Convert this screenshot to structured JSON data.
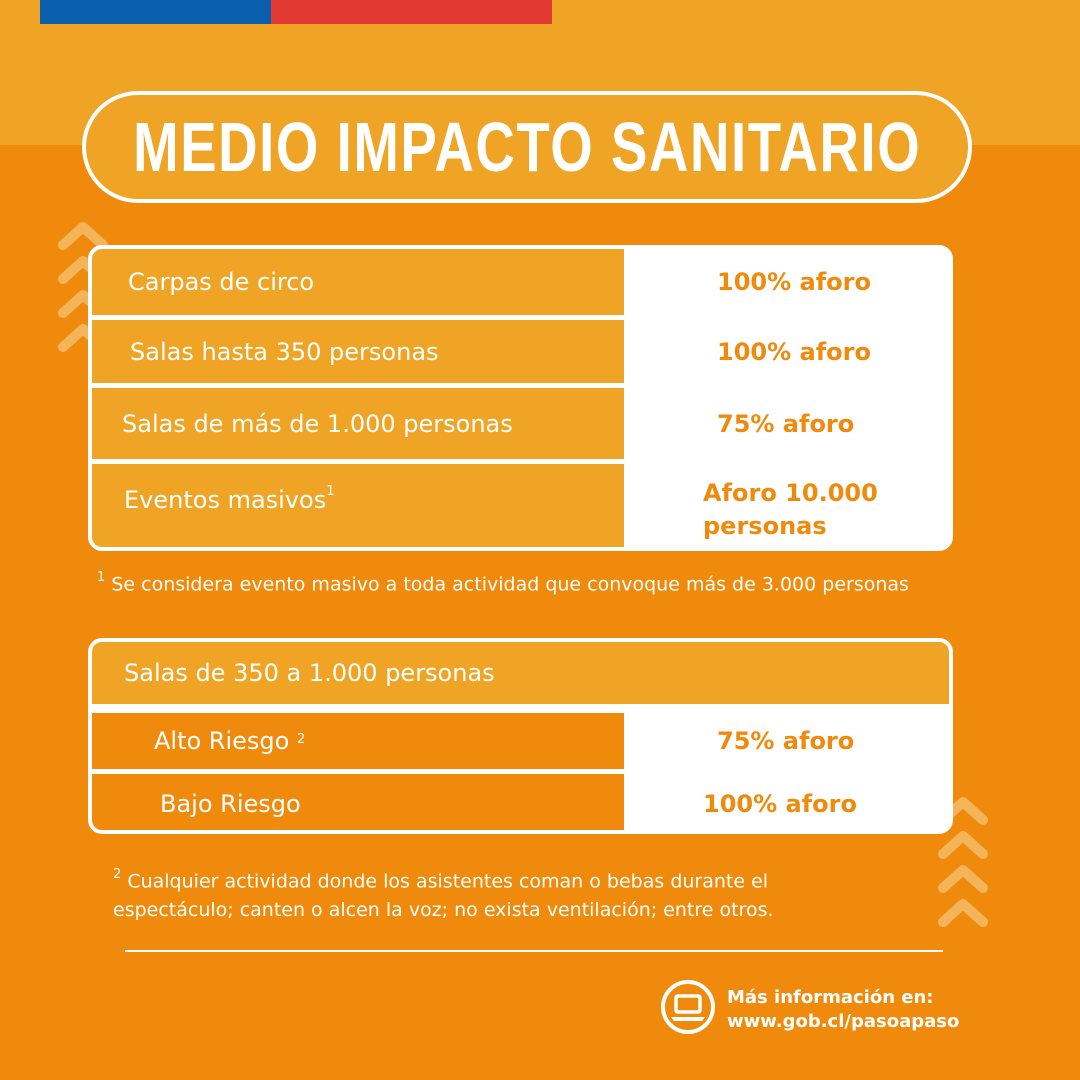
{
  "header": {
    "title": "MEDIO IMPACTO SANITARIO"
  },
  "table1": {
    "rows": [
      {
        "label": "Carpas de circo",
        "value": "100% aforo"
      },
      {
        "label": "Salas hasta 350 personas",
        "value": "100% aforo"
      },
      {
        "label": "Salas de más de 1.000 personas",
        "value": "75% aforo"
      },
      {
        "label": "Eventos masivos",
        "label_sup": "1",
        "value_line1": "Aforo 10.000",
        "value_line2": "personas"
      }
    ]
  },
  "footnote1": {
    "marker": "1",
    "text": "Se considera evento masivo a toda actividad que convoque más de 3.000 personas"
  },
  "table2": {
    "header": "Salas de 350 a 1.000 personas",
    "rows": [
      {
        "label": "Alto Riesgo",
        "label_sup": "2",
        "value": "75% aforo"
      },
      {
        "label": "Bajo Riesgo",
        "value": "100% aforo"
      }
    ]
  },
  "footnote2": {
    "marker": "2",
    "line1": "Cualquier actividad donde los asistentes coman o bebas durante el",
    "line2": "espectáculo; canten o alcen la voz; no exista ventilación; entre otros."
  },
  "footer": {
    "info_label": "Más información en:",
    "info_url": "www.gob.cl/pasoapaso",
    "icon": "laptop-icon"
  },
  "colors": {
    "background": "#ef8a0c",
    "band": "#f0a425",
    "flag_blue": "#0a5fac",
    "flag_red": "#e23a33",
    "text_white": "#ffffff"
  }
}
